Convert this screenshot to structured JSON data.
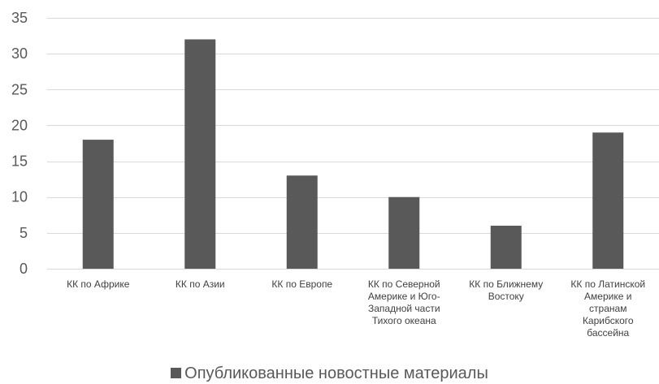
{
  "chart_data": {
    "type": "bar",
    "title": "",
    "xlabel": "",
    "ylabel": "",
    "categories": [
      "КК по Африке",
      "КК по Азии",
      "КК по Европе",
      "КК по Северной Америке и Юго-Западной части Тихого океана",
      "КК по Ближнему Востоку",
      "КК по Латинской Америке и странам Карибского бассейна"
    ],
    "category_lines": [
      [
        "КК по Африке"
      ],
      [
        "КК по Азии"
      ],
      [
        "КК по Европе"
      ],
      [
        "КК по Северной",
        "Америке и Юго-",
        "Западной части",
        "Тихого океана"
      ],
      [
        "КК по Ближнему",
        "Востоку"
      ],
      [
        "КК по Латинской",
        "Америке и",
        "странам",
        "Карибского",
        "бассейна"
      ]
    ],
    "series": [
      {
        "name": "Опубликованные новостные материалы",
        "values": [
          18,
          32,
          13,
          10,
          6,
          19
        ],
        "color": "#595959"
      }
    ],
    "ylim": [
      0,
      35
    ],
    "yticks": [
      0,
      5,
      10,
      15,
      20,
      25,
      30,
      35
    ],
    "grid": true,
    "legend_position": "bottom"
  }
}
